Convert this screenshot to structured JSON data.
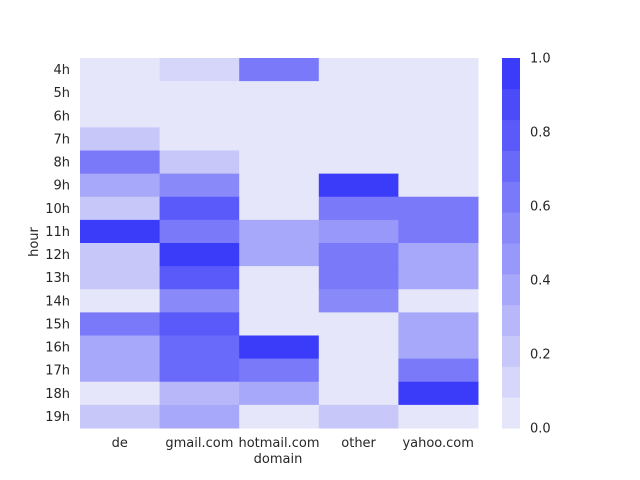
{
  "chart_data": {
    "type": "heatmap",
    "title": "",
    "xlabel": "domain",
    "ylabel": "hour",
    "x_categories": [
      "de",
      "gmail.com",
      "hotmail.com",
      "other",
      "yahoo.com"
    ],
    "y_categories": [
      "4h",
      "5h",
      "6h",
      "7h",
      "8h",
      "9h",
      "10h",
      "11h",
      "12h",
      "13h",
      "14h",
      "15h",
      "16h",
      "17h",
      "18h",
      "19h"
    ],
    "values": [
      [
        0.02,
        0.15,
        0.62,
        0.02,
        0.02
      ],
      [
        0.02,
        0.0,
        0.0,
        0.0,
        0.02
      ],
      [
        0.02,
        0.0,
        0.0,
        0.0,
        0.02
      ],
      [
        0.22,
        0.08,
        0.0,
        0.0,
        0.02
      ],
      [
        0.62,
        0.22,
        0.02,
        0.0,
        0.02
      ],
      [
        0.4,
        0.5,
        0.02,
        0.95,
        0.02
      ],
      [
        0.2,
        0.82,
        0.02,
        0.65,
        0.65
      ],
      [
        0.95,
        0.65,
        0.35,
        0.45,
        0.65
      ],
      [
        0.22,
        0.95,
        0.35,
        0.65,
        0.35
      ],
      [
        0.22,
        0.8,
        0.02,
        0.65,
        0.35
      ],
      [
        0.05,
        0.5,
        0.02,
        0.5,
        0.05
      ],
      [
        0.62,
        0.82,
        0.02,
        0.02,
        0.35
      ],
      [
        0.4,
        0.7,
        0.92,
        0.02,
        0.35
      ],
      [
        0.4,
        0.7,
        0.65,
        0.02,
        0.62
      ],
      [
        0.05,
        0.3,
        0.35,
        0.02,
        0.95
      ],
      [
        0.22,
        0.35,
        0.02,
        0.22,
        0.02
      ]
    ],
    "colorbar": {
      "min": 0.0,
      "max": 1.0,
      "ticks": [
        "0.0",
        "0.2",
        "0.4",
        "0.6",
        "0.8",
        "1.0"
      ],
      "levels": 12
    },
    "colors": {
      "low": "#e6e6fa",
      "high": "#3b3bfa"
    },
    "grid": false
  }
}
